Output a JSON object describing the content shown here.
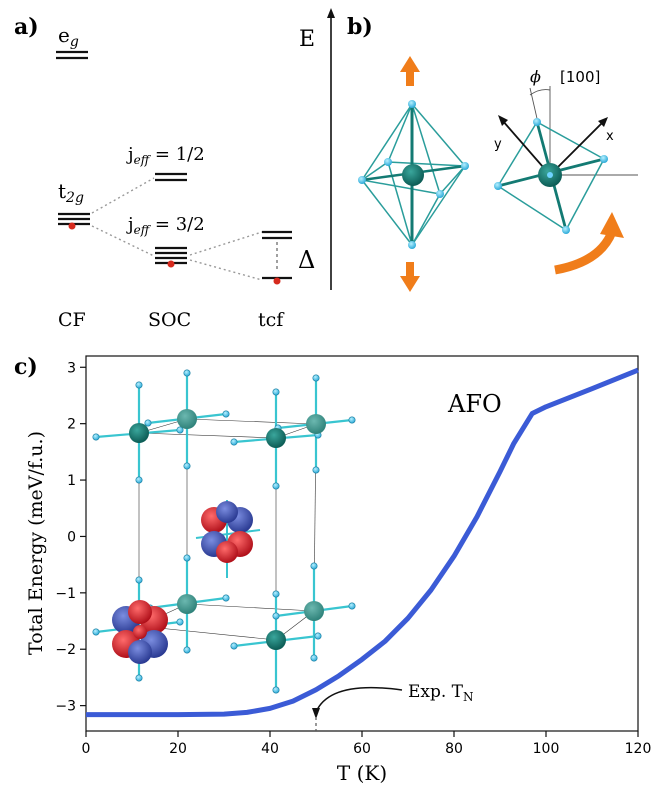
{
  "panel_a": {
    "label": "a)",
    "eg": "e",
    "eg_sub": "g",
    "t2g": "t",
    "t2g_sub": "2g",
    "jeff_half_pre": "j",
    "jeff_half_sub": "eff",
    "jeff_half_post": " = 1/2",
    "jeff_three_pre": "j",
    "jeff_three_sub": "eff",
    "jeff_three_post": " = 3/2",
    "delta": "Δ",
    "energy_axis": "E",
    "cols": [
      "CF",
      "SOC",
      "tcf"
    ]
  },
  "panel_b": {
    "label": "b)",
    "phi": "ϕ",
    "dir": "[100]",
    "axis_y": "y",
    "axis_x": "x"
  },
  "panel_c": {
    "label": "c)",
    "annotation_afo": "AFO",
    "annotation_tn": "Exp. T",
    "annotation_tn_sub": "N"
  },
  "colors": {
    "curve": "#3b5bd6",
    "arrow": "#f07d1a",
    "octa": "#2a9d9b",
    "atom": "#137a73",
    "red_dot": "#d62a1e"
  },
  "chart_data": {
    "type": "line",
    "xlabel": "T (K)",
    "ylabel": "Total Energy (meV/f.u.)",
    "xlim": [
      0,
      120
    ],
    "ylim": [
      -3.45,
      3.2
    ],
    "xticks": [
      0,
      20,
      40,
      60,
      80,
      100,
      120
    ],
    "yticks": [
      -3,
      -2,
      -1,
      0,
      1,
      2,
      3
    ],
    "grid": false,
    "series": [
      {
        "x": [
          0,
          10,
          20,
          30,
          35,
          40,
          45,
          50,
          55,
          60,
          65,
          70,
          75,
          80,
          85,
          90,
          93,
          97,
          100,
          110,
          120
        ],
        "values": [
          -3.16,
          -3.16,
          -3.16,
          -3.15,
          -3.12,
          -3.05,
          -2.92,
          -2.72,
          -2.47,
          -2.18,
          -1.86,
          -1.45,
          -0.95,
          -0.35,
          0.35,
          1.15,
          1.65,
          2.18,
          2.3,
          2.62,
          2.95
        ]
      }
    ],
    "markers": [
      {
        "x": 50,
        "label": "Exp. T_N"
      }
    ]
  }
}
